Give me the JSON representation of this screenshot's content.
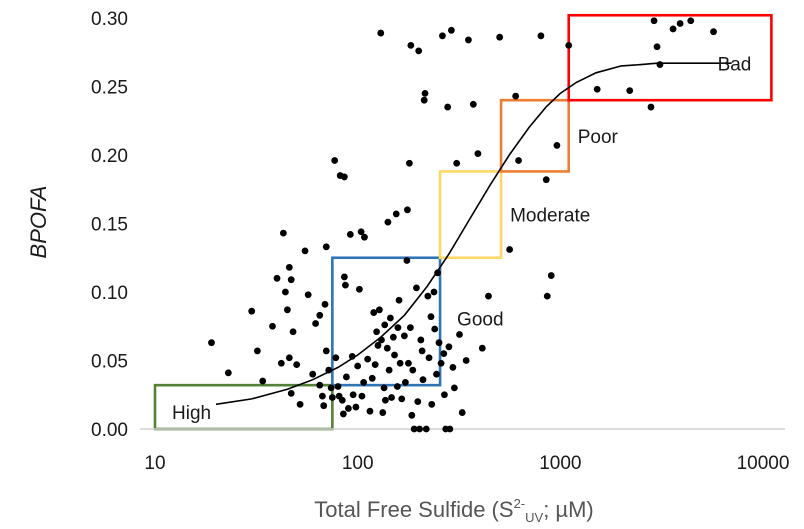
{
  "chart_data": {
    "type": "scatter",
    "title": "",
    "xlabel": "Total Free Sulfide (S",
    "xlabel_sup": "2-",
    "xlabel_sub": "UV",
    "xlabel_tail": "; µM)",
    "ylabel": "BPOFA",
    "x_scale": "log",
    "xlim": [
      10,
      10000
    ],
    "ylim": [
      0,
      0.3
    ],
    "x_ticks": [
      "10",
      "100",
      "1000",
      "10000"
    ],
    "x_tick_values": [
      10,
      100,
      1000,
      10000
    ],
    "y_ticks": [
      "0.00",
      "0.05",
      "0.10",
      "0.15",
      "0.20",
      "0.25",
      "0.30"
    ],
    "y_tick_values": [
      0,
      0.05,
      0.1,
      0.15,
      0.2,
      0.25,
      0.3
    ],
    "grid": false,
    "marker_color": "#000000",
    "points": [
      {
        "x": 19,
        "y": 0.063
      },
      {
        "x": 23,
        "y": 0.041
      },
      {
        "x": 30,
        "y": 0.086
      },
      {
        "x": 32,
        "y": 0.057
      },
      {
        "x": 34,
        "y": 0.035
      },
      {
        "x": 38,
        "y": 0.075
      },
      {
        "x": 40,
        "y": 0.11
      },
      {
        "x": 42,
        "y": 0.048
      },
      {
        "x": 43,
        "y": 0.143
      },
      {
        "x": 44,
        "y": 0.1
      },
      {
        "x": 45,
        "y": 0.087
      },
      {
        "x": 46,
        "y": 0.118
      },
      {
        "x": 46,
        "y": 0.052
      },
      {
        "x": 47,
        "y": 0.026
      },
      {
        "x": 47,
        "y": 0.109
      },
      {
        "x": 48,
        "y": 0.071
      },
      {
        "x": 50,
        "y": 0.047
      },
      {
        "x": 52,
        "y": 0.018
      },
      {
        "x": 55,
        "y": 0.13
      },
      {
        "x": 57,
        "y": 0.098
      },
      {
        "x": 60,
        "y": 0.04
      },
      {
        "x": 62,
        "y": 0.077
      },
      {
        "x": 65,
        "y": 0.032
      },
      {
        "x": 65,
        "y": 0.083
      },
      {
        "x": 67,
        "y": 0.024
      },
      {
        "x": 68,
        "y": 0.017
      },
      {
        "x": 69,
        "y": 0.091
      },
      {
        "x": 70,
        "y": 0.133
      },
      {
        "x": 70,
        "y": 0.057
      },
      {
        "x": 72,
        "y": 0.043
      },
      {
        "x": 74,
        "y": 0.03
      },
      {
        "x": 75,
        "y": 0.023
      },
      {
        "x": 77,
        "y": 0.196
      },
      {
        "x": 78,
        "y": 0.052
      },
      {
        "x": 80,
        "y": 0.031
      },
      {
        "x": 81,
        "y": 0.024
      },
      {
        "x": 82,
        "y": 0.185
      },
      {
        "x": 84,
        "y": 0.021
      },
      {
        "x": 85,
        "y": 0.011
      },
      {
        "x": 86,
        "y": 0.111
      },
      {
        "x": 86,
        "y": 0.184
      },
      {
        "x": 87,
        "y": 0.105
      },
      {
        "x": 88,
        "y": 0.038
      },
      {
        "x": 90,
        "y": 0.015
      },
      {
        "x": 92,
        "y": 0.142
      },
      {
        "x": 94,
        "y": 0.053
      },
      {
        "x": 95,
        "y": 0.025
      },
      {
        "x": 98,
        "y": 0.016
      },
      {
        "x": 100,
        "y": 0.046
      },
      {
        "x": 102,
        "y": 0.102
      },
      {
        "x": 104,
        "y": 0.144
      },
      {
        "x": 105,
        "y": 0.024
      },
      {
        "x": 107,
        "y": 0.034
      },
      {
        "x": 108,
        "y": 0.14
      },
      {
        "x": 112,
        "y": 0.051
      },
      {
        "x": 115,
        "y": 0.013
      },
      {
        "x": 118,
        "y": 0.037
      },
      {
        "x": 120,
        "y": 0.085
      },
      {
        "x": 122,
        "y": 0.047
      },
      {
        "x": 124,
        "y": 0.071
      },
      {
        "x": 126,
        "y": 0.061
      },
      {
        "x": 128,
        "y": 0.087
      },
      {
        "x": 130,
        "y": 0.289
      },
      {
        "x": 131,
        "y": 0.065
      },
      {
        "x": 133,
        "y": 0.012
      },
      {
        "x": 135,
        "y": 0.03
      },
      {
        "x": 136,
        "y": 0.076
      },
      {
        "x": 137,
        "y": 0.021
      },
      {
        "x": 140,
        "y": 0.059
      },
      {
        "x": 141,
        "y": 0.151
      },
      {
        "x": 143,
        "y": 0.043
      },
      {
        "x": 145,
        "y": 0.081
      },
      {
        "x": 147,
        "y": 0.023
      },
      {
        "x": 150,
        "y": 0.067
      },
      {
        "x": 152,
        "y": 0.054
      },
      {
        "x": 155,
        "y": 0.157
      },
      {
        "x": 157,
        "y": 0.031
      },
      {
        "x": 158,
        "y": 0.074
      },
      {
        "x": 160,
        "y": 0.094
      },
      {
        "x": 162,
        "y": 0.048
      },
      {
        "x": 165,
        "y": 0.022
      },
      {
        "x": 170,
        "y": 0.068
      },
      {
        "x": 172,
        "y": 0.034
      },
      {
        "x": 175,
        "y": 0.123
      },
      {
        "x": 176,
        "y": 0.16
      },
      {
        "x": 178,
        "y": 0.048
      },
      {
        "x": 180,
        "y": 0.194
      },
      {
        "x": 182,
        "y": 0.074
      },
      {
        "x": 183,
        "y": 0.28
      },
      {
        "x": 185,
        "y": 0.01
      },
      {
        "x": 187,
        "y": 0.043
      },
      {
        "x": 190,
        "y": 0.0
      },
      {
        "x": 195,
        "y": 0.103
      },
      {
        "x": 198,
        "y": 0.02
      },
      {
        "x": 200,
        "y": 0.276
      },
      {
        "x": 202,
        "y": 0.0
      },
      {
        "x": 205,
        "y": 0.065
      },
      {
        "x": 208,
        "y": 0.057
      },
      {
        "x": 210,
        "y": 0.036
      },
      {
        "x": 213,
        "y": 0.24
      },
      {
        "x": 215,
        "y": 0.245
      },
      {
        "x": 218,
        "y": 0.0
      },
      {
        "x": 222,
        "y": 0.097
      },
      {
        "x": 225,
        "y": 0.052
      },
      {
        "x": 230,
        "y": 0.082
      },
      {
        "x": 232,
        "y": 0.018
      },
      {
        "x": 238,
        "y": 0.1
      },
      {
        "x": 240,
        "y": 0.073
      },
      {
        "x": 245,
        "y": 0.04
      },
      {
        "x": 248,
        "y": 0.114
      },
      {
        "x": 252,
        "y": 0.063
      },
      {
        "x": 258,
        "y": 0.048
      },
      {
        "x": 262,
        "y": 0.287
      },
      {
        "x": 266,
        "y": 0.055
      },
      {
        "x": 268,
        "y": 0.025
      },
      {
        "x": 272,
        "y": 0.0
      },
      {
        "x": 278,
        "y": 0.235
      },
      {
        "x": 282,
        "y": 0.06
      },
      {
        "x": 285,
        "y": 0.0
      },
      {
        "x": 290,
        "y": 0.291
      },
      {
        "x": 295,
        "y": 0.045
      },
      {
        "x": 300,
        "y": 0.03
      },
      {
        "x": 308,
        "y": 0.194
      },
      {
        "x": 318,
        "y": 0.069
      },
      {
        "x": 328,
        "y": 0.012
      },
      {
        "x": 343,
        "y": 0.05
      },
      {
        "x": 352,
        "y": 0.284
      },
      {
        "x": 372,
        "y": 0.237
      },
      {
        "x": 392,
        "y": 0.201
      },
      {
        "x": 412,
        "y": 0.059
      },
      {
        "x": 442,
        "y": 0.097
      },
      {
        "x": 502,
        "y": 0.286
      },
      {
        "x": 562,
        "y": 0.131
      },
      {
        "x": 602,
        "y": 0.243
      },
      {
        "x": 622,
        "y": 0.196
      },
      {
        "x": 802,
        "y": 0.287
      },
      {
        "x": 852,
        "y": 0.182
      },
      {
        "x": 902,
        "y": 0.112
      },
      {
        "x": 862,
        "y": 0.097
      },
      {
        "x": 962,
        "y": 0.207
      },
      {
        "x": 1100,
        "y": 0.28
      },
      {
        "x": 1520,
        "y": 0.248
      },
      {
        "x": 2200,
        "y": 0.247
      },
      {
        "x": 2800,
        "y": 0.235
      },
      {
        "x": 2900,
        "y": 0.298
      },
      {
        "x": 3000,
        "y": 0.279
      },
      {
        "x": 3100,
        "y": 0.266
      },
      {
        "x": 3600,
        "y": 0.292
      },
      {
        "x": 3900,
        "y": 0.296
      },
      {
        "x": 4400,
        "y": 0.298
      },
      {
        "x": 5700,
        "y": 0.29
      }
    ],
    "trend_line": {
      "x": [
        20,
        30,
        45,
        60,
        80,
        100,
        130,
        170,
        220,
        280,
        350,
        450,
        560,
        700,
        850,
        1000,
        1200,
        1500,
        2000,
        2500,
        3000,
        4000,
        5000,
        7000
      ],
      "y": [
        0.018,
        0.022,
        0.029,
        0.036,
        0.045,
        0.054,
        0.067,
        0.083,
        0.104,
        0.127,
        0.151,
        0.178,
        0.2,
        0.22,
        0.235,
        0.245,
        0.253,
        0.26,
        0.265,
        0.266,
        0.267,
        0.267,
        0.267,
        0.267
      ],
      "color": "#000000"
    },
    "regions": [
      {
        "label": "High",
        "x_range": [
          10,
          75
        ],
        "y_range": [
          0,
          0.032
        ],
        "color": "#538135"
      },
      {
        "label": "Good",
        "x_range": [
          75,
          255
        ],
        "y_range": [
          0.032,
          0.125
        ],
        "color": "#2e75b6"
      },
      {
        "label": "Moderate",
        "x_range": [
          255,
          510
        ],
        "y_range": [
          0.125,
          0.188
        ],
        "color": "#ffd966"
      },
      {
        "label": "Poor",
        "x_range": [
          510,
          1100
        ],
        "y_range": [
          0.188,
          0.24
        ],
        "color": "#ed7d31"
      },
      {
        "label": "Bad",
        "x_range": [
          1100,
          11000
        ],
        "y_range": [
          0.24,
          0.302
        ],
        "color": "#ff0000"
      }
    ]
  }
}
